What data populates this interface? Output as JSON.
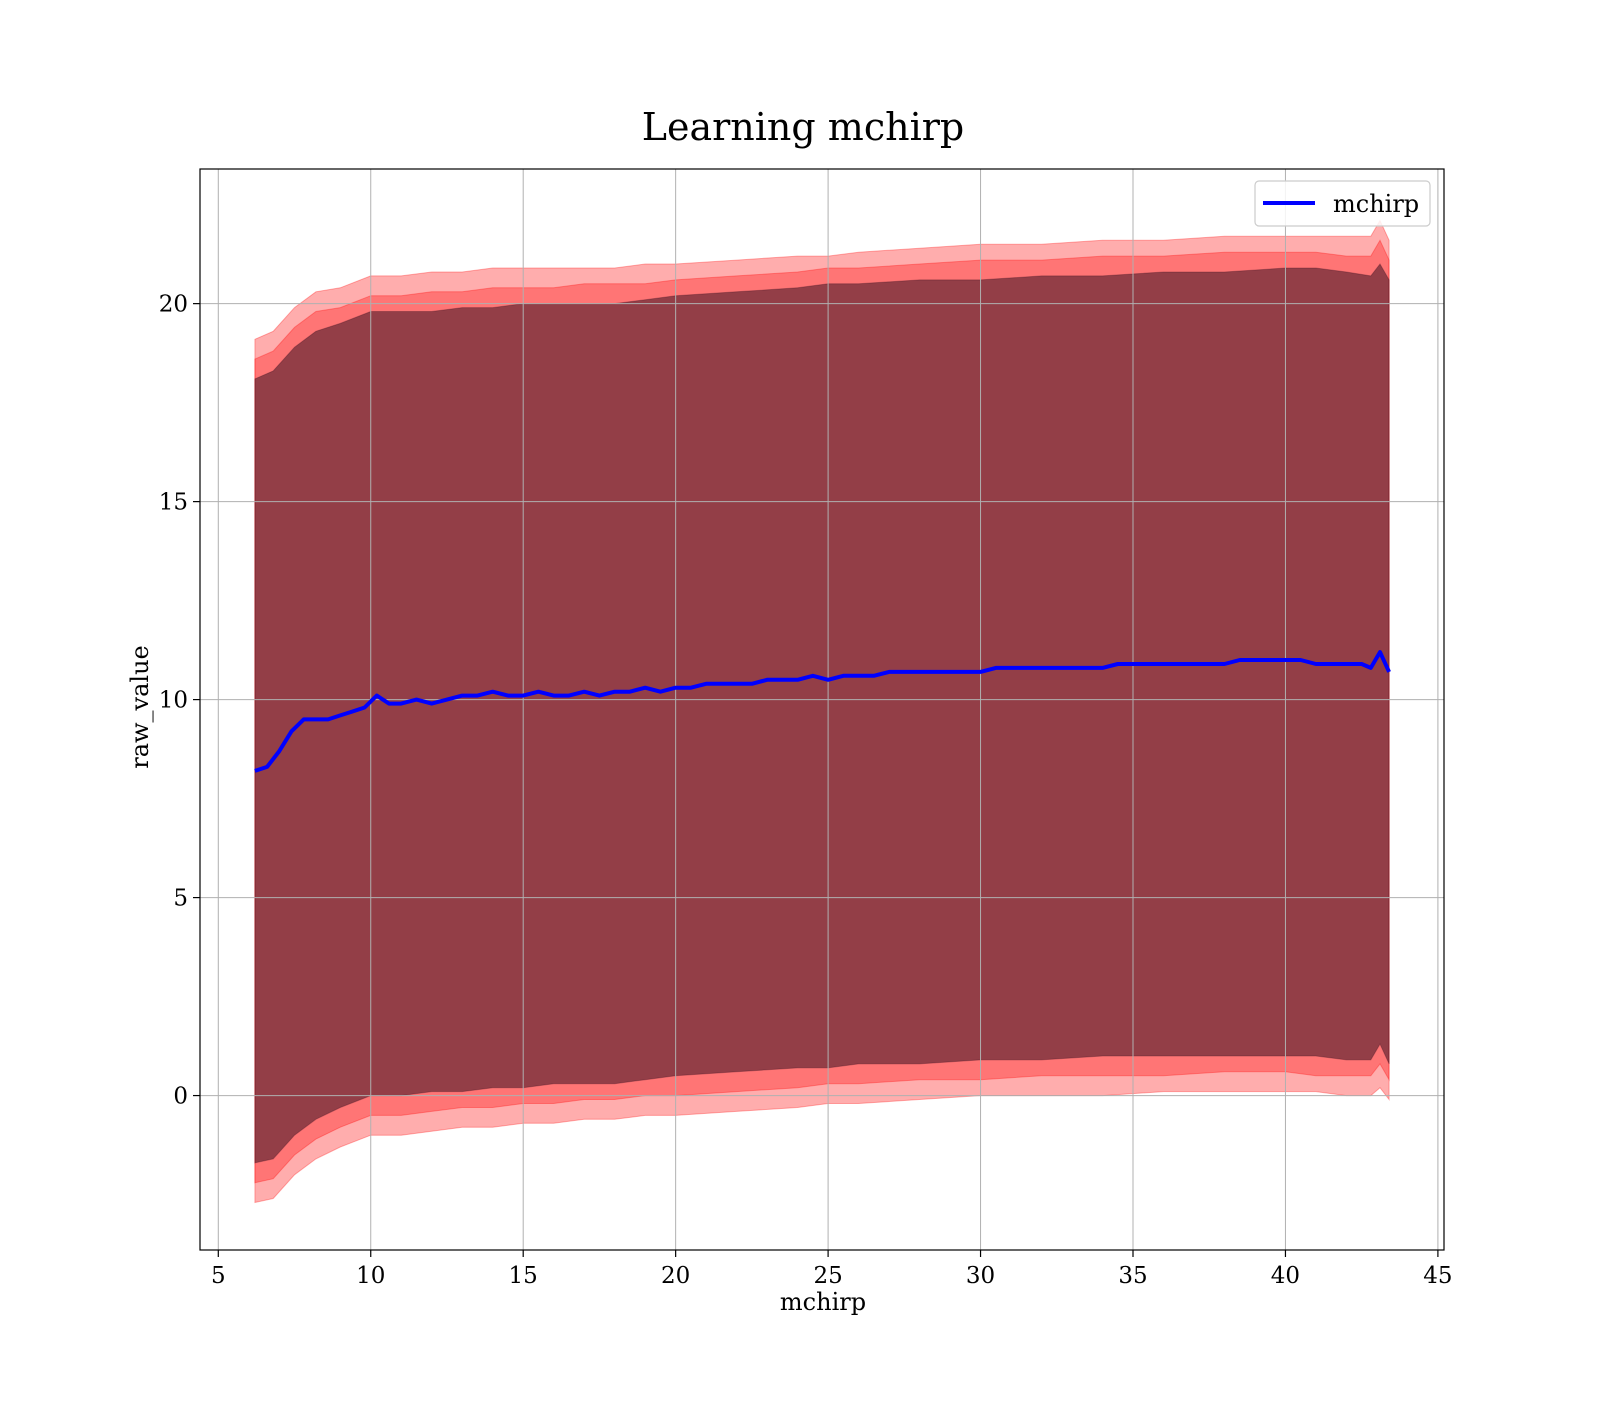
{
  "chart_data": {
    "type": "line",
    "title": "Learning mchirp",
    "xlabel": "mchirp",
    "ylabel": "raw_value",
    "xlim": [
      4.4,
      45.2
    ],
    "ylim": [
      -3.9,
      23.4
    ],
    "xticks": [
      5,
      10,
      15,
      20,
      25,
      30,
      35,
      40,
      45
    ],
    "yticks": [
      0,
      5,
      10,
      15,
      20
    ],
    "xtick_labels": [
      "5",
      "10",
      "15",
      "20",
      "25",
      "30",
      "35",
      "40",
      "45"
    ],
    "ytick_labels": [
      "0",
      "5",
      "10",
      "15",
      "20"
    ],
    "grid": true,
    "legend_position": "upper right",
    "colors": {
      "line": "#0000ff",
      "band": "#ff0000",
      "band_inner": "#3b1020"
    },
    "series": [
      {
        "name": "mchirp",
        "x": [
          6.2,
          6.6,
          7.0,
          7.4,
          7.8,
          8.2,
          8.6,
          9.0,
          9.4,
          9.8,
          10.2,
          10.6,
          11.0,
          11.5,
          12.0,
          12.5,
          13.0,
          13.5,
          14.0,
          14.5,
          15.0,
          15.5,
          16.0,
          16.5,
          17.0,
          17.5,
          18.0,
          18.5,
          19.0,
          19.5,
          20.0,
          20.5,
          21.0,
          21.5,
          22.0,
          22.5,
          23.0,
          23.5,
          24.0,
          24.5,
          25.0,
          25.5,
          26.0,
          26.5,
          27.0,
          27.5,
          28.0,
          28.5,
          29.0,
          29.5,
          30.0,
          30.5,
          31.0,
          31.5,
          32.0,
          32.5,
          33.0,
          33.5,
          34.0,
          34.5,
          35.0,
          35.5,
          36.0,
          36.5,
          37.0,
          37.5,
          38.0,
          38.5,
          39.0,
          39.5,
          40.0,
          40.5,
          41.0,
          41.5,
          42.0,
          42.5,
          42.8,
          43.1,
          43.4
        ],
        "y": [
          8.2,
          8.3,
          8.7,
          9.2,
          9.5,
          9.5,
          9.5,
          9.6,
          9.7,
          9.8,
          10.1,
          9.9,
          9.9,
          10.0,
          9.9,
          10.0,
          10.1,
          10.1,
          10.2,
          10.1,
          10.1,
          10.2,
          10.1,
          10.1,
          10.2,
          10.1,
          10.2,
          10.2,
          10.3,
          10.2,
          10.3,
          10.3,
          10.4,
          10.4,
          10.4,
          10.4,
          10.5,
          10.5,
          10.5,
          10.6,
          10.5,
          10.6,
          10.6,
          10.6,
          10.7,
          10.7,
          10.7,
          10.7,
          10.7,
          10.7,
          10.7,
          10.8,
          10.8,
          10.8,
          10.8,
          10.8,
          10.8,
          10.8,
          10.8,
          10.9,
          10.9,
          10.9,
          10.9,
          10.9,
          10.9,
          10.9,
          10.9,
          11.0,
          11.0,
          11.0,
          11.0,
          11.0,
          10.9,
          10.9,
          10.9,
          10.9,
          10.8,
          11.2,
          10.7
        ]
      }
    ],
    "bands": [
      {
        "level": "outer",
        "x": [
          6.2,
          6.8,
          7.5,
          8.2,
          9.0,
          10.0,
          11.0,
          12.0,
          13.0,
          14.0,
          15.0,
          16.0,
          17.0,
          18.0,
          19.0,
          20.0,
          22.0,
          24.0,
          25.0,
          26.0,
          28.0,
          30.0,
          32.0,
          34.0,
          36.0,
          38.0,
          40.0,
          41.0,
          42.0,
          42.8,
          43.1,
          43.4
        ],
        "upper": [
          19.1,
          19.3,
          19.9,
          20.3,
          20.4,
          20.7,
          20.7,
          20.8,
          20.8,
          20.9,
          20.9,
          20.9,
          20.9,
          20.9,
          21.0,
          21.0,
          21.1,
          21.2,
          21.2,
          21.3,
          21.4,
          21.5,
          21.5,
          21.6,
          21.6,
          21.7,
          21.7,
          21.7,
          21.7,
          21.7,
          22.1,
          21.6
        ],
        "lower": [
          -2.7,
          -2.6,
          -2.0,
          -1.6,
          -1.3,
          -1.0,
          -1.0,
          -0.9,
          -0.8,
          -0.8,
          -0.7,
          -0.7,
          -0.6,
          -0.6,
          -0.5,
          -0.5,
          -0.4,
          -0.3,
          -0.2,
          -0.2,
          -0.1,
          0.0,
          0.0,
          0.0,
          0.1,
          0.1,
          0.1,
          0.1,
          0.0,
          0.0,
          0.2,
          -0.1
        ]
      },
      {
        "level": "middle",
        "x": [
          6.2,
          6.8,
          7.5,
          8.2,
          9.0,
          10.0,
          11.0,
          12.0,
          13.0,
          14.0,
          15.0,
          16.0,
          17.0,
          18.0,
          19.0,
          20.0,
          22.0,
          24.0,
          25.0,
          26.0,
          28.0,
          30.0,
          32.0,
          34.0,
          36.0,
          38.0,
          40.0,
          41.0,
          42.0,
          42.8,
          43.1,
          43.4
        ],
        "upper": [
          18.6,
          18.8,
          19.4,
          19.8,
          19.9,
          20.2,
          20.2,
          20.3,
          20.3,
          20.4,
          20.4,
          20.4,
          20.5,
          20.5,
          20.5,
          20.6,
          20.7,
          20.8,
          20.9,
          20.9,
          21.0,
          21.1,
          21.1,
          21.2,
          21.2,
          21.3,
          21.3,
          21.3,
          21.2,
          21.2,
          21.6,
          21.1
        ],
        "lower": [
          -2.2,
          -2.1,
          -1.5,
          -1.1,
          -0.8,
          -0.5,
          -0.5,
          -0.4,
          -0.3,
          -0.3,
          -0.2,
          -0.2,
          -0.1,
          -0.1,
          0.0,
          0.0,
          0.1,
          0.2,
          0.3,
          0.3,
          0.4,
          0.4,
          0.5,
          0.5,
          0.5,
          0.6,
          0.6,
          0.5,
          0.5,
          0.5,
          0.8,
          0.4
        ]
      },
      {
        "level": "inner",
        "x": [
          6.2,
          6.8,
          7.5,
          8.2,
          9.0,
          10.0,
          11.0,
          12.0,
          13.0,
          14.0,
          15.0,
          16.0,
          17.0,
          18.0,
          19.0,
          20.0,
          22.0,
          24.0,
          25.0,
          26.0,
          28.0,
          30.0,
          32.0,
          34.0,
          36.0,
          38.0,
          40.0,
          41.0,
          42.0,
          42.8,
          43.1,
          43.4
        ],
        "upper": [
          18.1,
          18.3,
          18.9,
          19.3,
          19.5,
          19.8,
          19.8,
          19.8,
          19.9,
          19.9,
          20.0,
          20.0,
          20.0,
          20.0,
          20.1,
          20.2,
          20.3,
          20.4,
          20.5,
          20.5,
          20.6,
          20.6,
          20.7,
          20.7,
          20.8,
          20.8,
          20.9,
          20.9,
          20.8,
          20.7,
          21.0,
          20.6
        ],
        "lower": [
          -1.7,
          -1.6,
          -1.0,
          -0.6,
          -0.3,
          0.0,
          0.0,
          0.1,
          0.1,
          0.2,
          0.2,
          0.3,
          0.3,
          0.3,
          0.4,
          0.5,
          0.6,
          0.7,
          0.7,
          0.8,
          0.8,
          0.9,
          0.9,
          1.0,
          1.0,
          1.0,
          1.0,
          1.0,
          0.9,
          0.9,
          1.3,
          0.8
        ]
      }
    ]
  }
}
